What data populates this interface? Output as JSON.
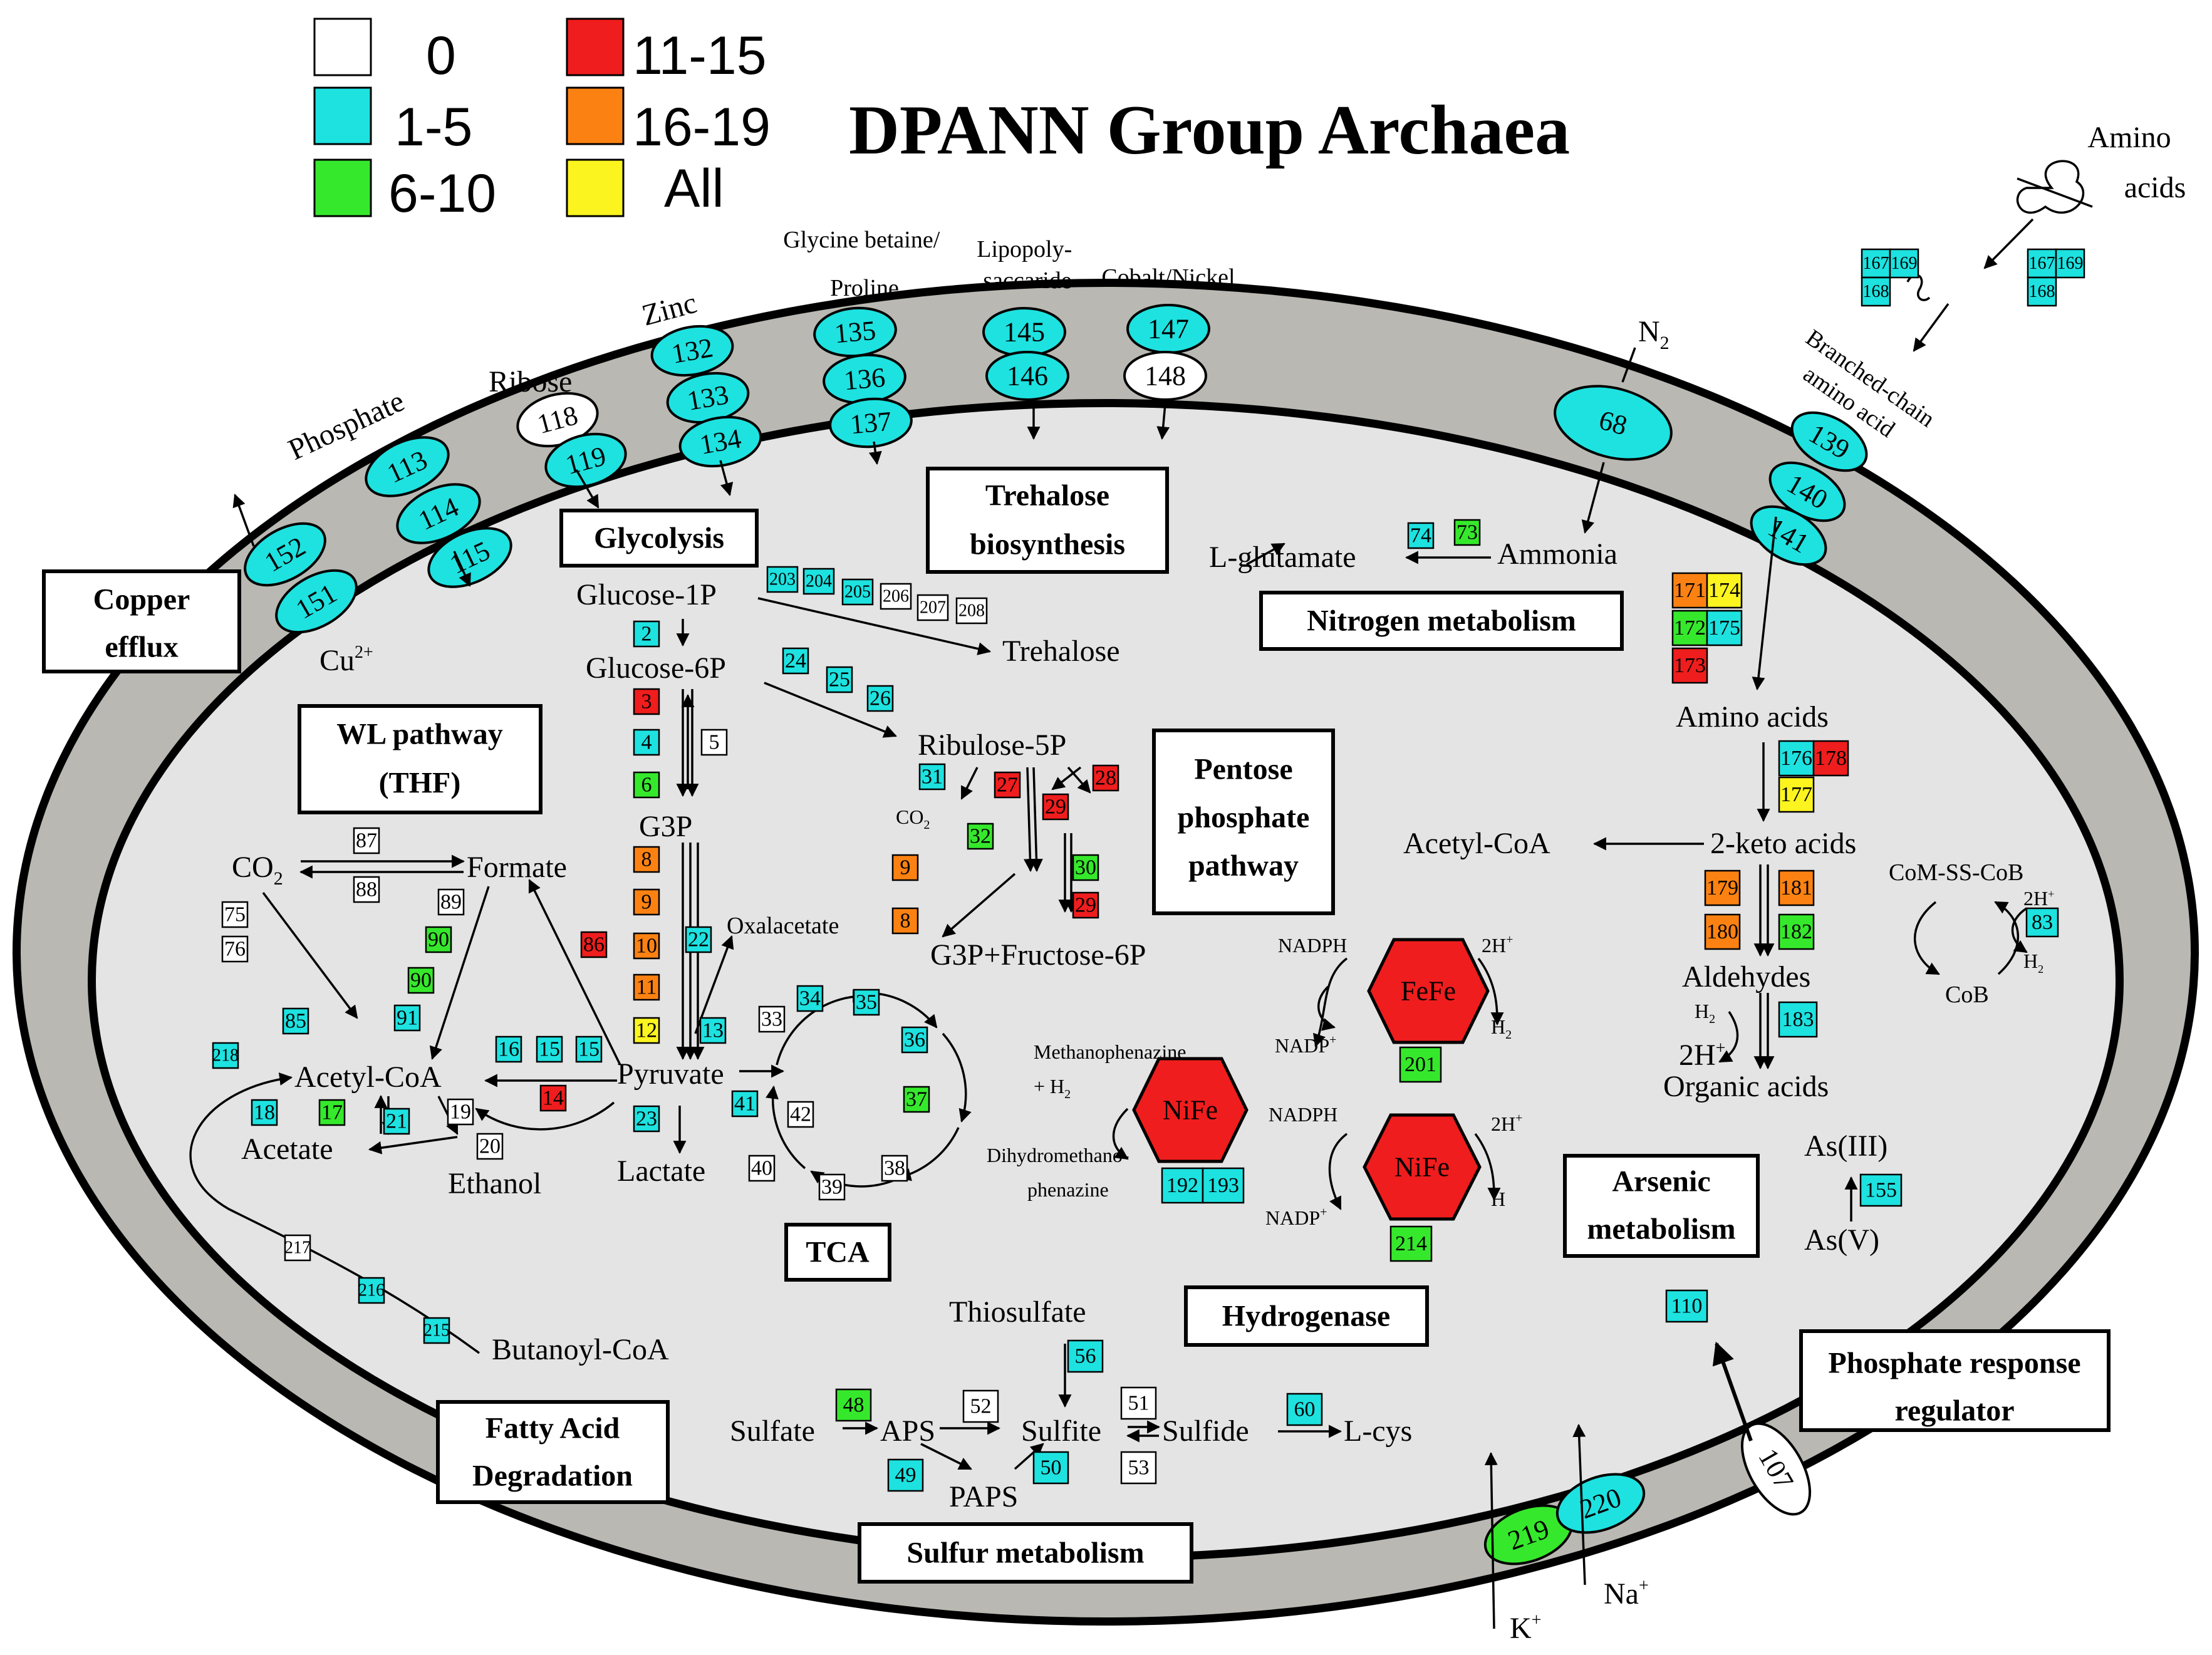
{
  "title": "DPANN Group Archaea",
  "legend": [
    {
      "label": "0",
      "color": "#ffffff"
    },
    {
      "label": "1-5",
      "color": "#1de2e0"
    },
    {
      "label": "6-10",
      "color": "#36e82c"
    },
    {
      "label": "11-15",
      "color": "#ef1d1d"
    },
    {
      "label": "16-19",
      "color": "#fb8212"
    },
    {
      "label": "All",
      "color": "#fbf41f"
    }
  ],
  "colors": {
    "0": "#ffffff",
    "1-5": "#1de2e0",
    "6-10": "#36e82c",
    "11-15": "#ef1d1d",
    "16-19": "#fb8212",
    "All": "#fbf41f",
    "membrane": "#b9b8b3",
    "cytoplasm": "#e4e4e4",
    "hydrogenase": "#ef1d1d"
  },
  "sections": {
    "copper_efflux": [
      "Copper",
      "efflux"
    ],
    "glycolysis": "Glycolysis",
    "trehalose": [
      "Trehalose",
      "biosynthesis"
    ],
    "nitrogen": "Nitrogen metabolism",
    "wl": [
      "WL pathway",
      "(THF)"
    ],
    "ppp": [
      "Pentose",
      "phosphate",
      "pathway"
    ],
    "tca": "TCA",
    "hydrogenase": "Hydrogenase",
    "arsenic": [
      "Arsenic",
      "metabolism"
    ],
    "phosphate_response": [
      "Phosphate response",
      "regulator"
    ],
    "fatty_acid": [
      "Fatty Acid",
      "Degradation"
    ],
    "sulfur": "Sulfur metabolism"
  },
  "transport_labels": {
    "phosphate": "Phosphate",
    "ribose": "Ribose",
    "zinc": "Zinc",
    "glycine_betaine": [
      "Glycine betaine/",
      "Proline"
    ],
    "lipopolysaccaride": [
      "Lipopoly-",
      "saccaride"
    ],
    "cobalt_nickel": "Cobalt/Nickel",
    "n2": "N",
    "n2_sub": "2",
    "branched_chain": [
      "Branched-chain",
      "amino acid"
    ],
    "amino_acids_out": [
      "Amino",
      "acids"
    ],
    "cu": "Cu",
    "cu_sup": "2+",
    "k": "K",
    "k_sup": "+",
    "na": "Na",
    "na_sup": "+"
  },
  "metabolites": {
    "glucose1p": "Glucose-1P",
    "glucose6p": "Glucose-6P",
    "trehalose": "Trehalose",
    "ribulose5p": "Ribulose-5P",
    "g3p": "G3P",
    "co2_ppp": "CO",
    "co2_ppp_sub": "2",
    "g3p_fructose": "G3P+Fructose-6P",
    "oxalacetate": "Oxalacetate",
    "pyruvate": "Pyruvate",
    "lactate": "Lactate",
    "co2": "CO",
    "co2_sub": "2",
    "formate": "Formate",
    "acetyl_coa": "Acetyl-CoA",
    "acetate": "Acetate",
    "ethanol": "Ethanol",
    "butanoyl_coa": "Butanoyl-CoA",
    "l_glutamate": "L-glutamate",
    "ammonia": "Ammonia",
    "amino_acids": "Amino acids",
    "acetyl_coa_right": "Acetyl-CoA",
    "keto_acids": "2-keto acids",
    "aldehydes": "Aldehydes",
    "h2_left": "H",
    "h2_left_sub": "2",
    "two_h": "2H",
    "two_h_sup": "+",
    "organic_acids": "Organic acids",
    "com_ss_cob": "CoM-SS-CoB",
    "cob": "CoB",
    "two_h_cob": "2H",
    "two_h_cob_sup": "+",
    "h2_cob": "H",
    "h2_cob_sub": "2",
    "as3": "As(III)",
    "as5": "As(V)",
    "thiosulfate": "Thiosulfate",
    "sulfate": "Sulfate",
    "aps": "APS",
    "sulfite": "Sulfite",
    "sulfide": "Sulfide",
    "lcys": "L-cys",
    "paps": "PAPS",
    "nadph1": "NADPH",
    "nadp1": "NADP",
    "nadp1_sup": "+",
    "two_h_fefe": "2H",
    "two_h_fefe_sup": "+",
    "h2_fefe": "H",
    "h2_fefe_sub": "2",
    "methanophenazine": "Methanophenazine",
    "plus_h2": "+ H",
    "plus_h2_sub": "2",
    "dihydro1": "Dihydromethano-",
    "dihydro2": "phenazine",
    "nadph2": "NADPH",
    "nadp2": "NADP",
    "nadp2_sup": "+",
    "two_h_nife": "2H",
    "two_h_nife_sup": "+",
    "h_nife": "H"
  },
  "hydrogenases": [
    {
      "id": "fefe",
      "label": "FeFe"
    },
    {
      "id": "nife1",
      "label": "NiFe"
    },
    {
      "id": "nife2",
      "label": "NiFe"
    }
  ],
  "transporters": [
    {
      "id": "152",
      "level": "1-5"
    },
    {
      "id": "151",
      "level": "1-5"
    },
    {
      "id": "113",
      "level": "1-5"
    },
    {
      "id": "114",
      "level": "1-5"
    },
    {
      "id": "115",
      "level": "1-5"
    },
    {
      "id": "118",
      "level": "0"
    },
    {
      "id": "119",
      "level": "1-5"
    },
    {
      "id": "132",
      "level": "1-5"
    },
    {
      "id": "133",
      "level": "1-5"
    },
    {
      "id": "134",
      "level": "1-5"
    },
    {
      "id": "135",
      "level": "1-5"
    },
    {
      "id": "136",
      "level": "1-5"
    },
    {
      "id": "137",
      "level": "1-5"
    },
    {
      "id": "145",
      "level": "1-5"
    },
    {
      "id": "146",
      "level": "1-5"
    },
    {
      "id": "147",
      "level": "1-5"
    },
    {
      "id": "148",
      "level": "0"
    },
    {
      "id": "68",
      "level": "1-5"
    },
    {
      "id": "139",
      "level": "1-5"
    },
    {
      "id": "140",
      "level": "1-5"
    },
    {
      "id": "141",
      "level": "1-5"
    },
    {
      "id": "219",
      "level": "6-10"
    },
    {
      "id": "220",
      "level": "1-5"
    },
    {
      "id": "107",
      "level": "0"
    }
  ],
  "enzymes": [
    {
      "id": "2",
      "level": "1-5"
    },
    {
      "id": "3",
      "level": "11-15"
    },
    {
      "id": "4",
      "level": "1-5"
    },
    {
      "id": "5",
      "level": "0"
    },
    {
      "id": "6",
      "level": "6-10"
    },
    {
      "id": "8",
      "level": "16-19"
    },
    {
      "id": "9",
      "level": "16-19"
    },
    {
      "id": "10",
      "level": "16-19"
    },
    {
      "id": "11",
      "level": "16-19"
    },
    {
      "id": "12",
      "level": "All"
    },
    {
      "id": "13",
      "level": "1-5"
    },
    {
      "id": "22",
      "level": "1-5"
    },
    {
      "id": "86",
      "level": "11-15"
    },
    {
      "id": "23",
      "level": "1-5"
    },
    {
      "id": "203",
      "level": "1-5"
    },
    {
      "id": "204",
      "level": "1-5"
    },
    {
      "id": "205",
      "level": "1-5"
    },
    {
      "id": "206",
      "level": "0"
    },
    {
      "id": "207",
      "level": "0"
    },
    {
      "id": "208",
      "level": "0"
    },
    {
      "id": "24",
      "level": "1-5"
    },
    {
      "id": "25",
      "level": "1-5"
    },
    {
      "id": "26",
      "level": "1-5"
    },
    {
      "id": "31",
      "level": "1-5"
    },
    {
      "id": "27",
      "level": "11-15"
    },
    {
      "id": "28",
      "level": "11-15"
    },
    {
      "id": "29",
      "level": "11-15"
    },
    {
      "id": "32",
      "level": "6-10"
    },
    {
      "id": "30",
      "level": "6-10"
    },
    {
      "id": "29b",
      "label": "29",
      "level": "11-15"
    },
    {
      "id": "9b",
      "label": "9",
      "level": "16-19"
    },
    {
      "id": "8b",
      "label": "8",
      "level": "16-19"
    },
    {
      "id": "87",
      "level": "0"
    },
    {
      "id": "88",
      "level": "0"
    },
    {
      "id": "75",
      "level": "0"
    },
    {
      "id": "76",
      "level": "0"
    },
    {
      "id": "89",
      "level": "0"
    },
    {
      "id": "90",
      "level": "6-10"
    },
    {
      "id": "90b",
      "label": "90",
      "level": "6-10"
    },
    {
      "id": "91",
      "level": "1-5"
    },
    {
      "id": "85",
      "level": "1-5"
    },
    {
      "id": "218",
      "level": "1-5"
    },
    {
      "id": "16",
      "level": "1-5"
    },
    {
      "id": "15",
      "level": "1-5"
    },
    {
      "id": "15b",
      "label": "15",
      "level": "1-5"
    },
    {
      "id": "14",
      "level": "11-15"
    },
    {
      "id": "19",
      "level": "0"
    },
    {
      "id": "20",
      "level": "0"
    },
    {
      "id": "18",
      "level": "1-5"
    },
    {
      "id": "17",
      "level": "6-10"
    },
    {
      "id": "21",
      "level": "1-5"
    },
    {
      "id": "217",
      "level": "0"
    },
    {
      "id": "216",
      "level": "1-5"
    },
    {
      "id": "215",
      "level": "1-5"
    },
    {
      "id": "33",
      "level": "0"
    },
    {
      "id": "34",
      "level": "1-5"
    },
    {
      "id": "35",
      "level": "1-5"
    },
    {
      "id": "36",
      "level": "1-5"
    },
    {
      "id": "37",
      "level": "6-10"
    },
    {
      "id": "38",
      "level": "0"
    },
    {
      "id": "39",
      "level": "0"
    },
    {
      "id": "40",
      "level": "0"
    },
    {
      "id": "41",
      "level": "1-5"
    },
    {
      "id": "42",
      "level": "0"
    },
    {
      "id": "74",
      "level": "1-5"
    },
    {
      "id": "73",
      "level": "6-10"
    },
    {
      "id": "167",
      "level": "1-5"
    },
    {
      "id": "169",
      "level": "1-5"
    },
    {
      "id": "168",
      "level": "1-5"
    },
    {
      "id": "167b",
      "label": "167",
      "level": "1-5"
    },
    {
      "id": "169b",
      "label": "169",
      "level": "1-5"
    },
    {
      "id": "168b",
      "label": "168",
      "level": "1-5"
    },
    {
      "id": "171",
      "level": "16-19"
    },
    {
      "id": "174",
      "level": "All"
    },
    {
      "id": "172",
      "level": "6-10"
    },
    {
      "id": "175",
      "level": "1-5"
    },
    {
      "id": "173",
      "level": "11-15"
    },
    {
      "id": "176",
      "level": "1-5"
    },
    {
      "id": "178",
      "level": "11-15"
    },
    {
      "id": "177",
      "level": "All"
    },
    {
      "id": "179",
      "level": "16-19"
    },
    {
      "id": "181",
      "level": "16-19"
    },
    {
      "id": "180",
      "level": "16-19"
    },
    {
      "id": "182",
      "level": "6-10"
    },
    {
      "id": "183",
      "level": "1-5"
    },
    {
      "id": "83",
      "level": "1-5"
    },
    {
      "id": "155",
      "level": "1-5"
    },
    {
      "id": "110",
      "level": "1-5"
    },
    {
      "id": "201",
      "level": "6-10"
    },
    {
      "id": "192",
      "level": "1-5"
    },
    {
      "id": "193",
      "level": "1-5"
    },
    {
      "id": "214",
      "level": "6-10"
    },
    {
      "id": "48",
      "level": "6-10"
    },
    {
      "id": "49",
      "level": "1-5"
    },
    {
      "id": "52",
      "level": "0"
    },
    {
      "id": "56",
      "level": "1-5"
    },
    {
      "id": "50",
      "level": "1-5"
    },
    {
      "id": "51",
      "level": "0"
    },
    {
      "id": "53",
      "level": "0"
    },
    {
      "id": "60",
      "level": "1-5"
    }
  ]
}
